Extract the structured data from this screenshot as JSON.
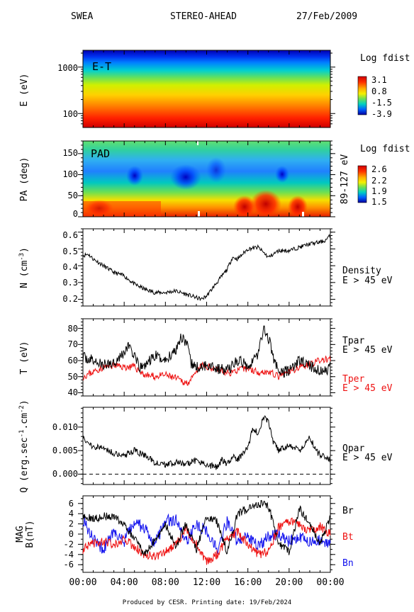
{
  "header": {
    "instrument": "SWEA",
    "spacecraft": "STEREO-AHEAD",
    "date": "27/Feb/2009"
  },
  "footer": "Produced by CESR.  Printing date: 19/Feb/2024",
  "colors": {
    "black": "#000000",
    "red": "#ee1111",
    "blue": "#1111ee"
  },
  "x_ticks": [
    "00:00",
    "04:00",
    "08:00",
    "12:00",
    "16:00",
    "20:00",
    "00:00"
  ],
  "chart_data": [
    {
      "type": "heatmap",
      "panel": "energy-time",
      "inset_label": "E-T",
      "ylabel": "E (eV)",
      "ylim": [
        50,
        2300
      ],
      "yscale": "log",
      "y_ticks": [
        "1000",
        "100"
      ],
      "colorbar": {
        "title": "Log fdist",
        "ticks": [
          "3.1",
          "0.8",
          "-1.5",
          "-3.9"
        ]
      }
    },
    {
      "type": "heatmap",
      "panel": "pitch-angle",
      "inset_label": "PAD",
      "ylabel": "PA (deg)",
      "ylim": [
        0,
        180
      ],
      "y_ticks": [
        "150",
        "100",
        "50",
        "0"
      ],
      "side_label": "89-127 eV",
      "colorbar": {
        "title": "Log fdist",
        "ticks": [
          "2.6",
          "2.2",
          "1.9",
          "1.5"
        ]
      }
    },
    {
      "type": "line",
      "panel": "density",
      "ylabel": "N (cm",
      "ylabel_sup": "-3",
      "ylabel_end": ")",
      "ylim": [
        0.16,
        0.62
      ],
      "y_ticks": [
        "0.6",
        "0.5",
        "0.4",
        "0.3",
        "0.2"
      ],
      "series": [
        {
          "name": "Density",
          "subtitle": "E > 45 eV",
          "color": "#000000",
          "x": [
            0,
            0.5,
            1,
            2,
            3,
            4,
            5,
            6,
            7,
            8,
            9,
            10,
            10.5,
            11,
            11.5,
            12,
            12.5,
            13,
            13.5,
            14,
            14.5,
            15,
            16,
            17,
            18,
            19,
            20,
            21,
            22,
            23,
            23.5,
            24
          ],
          "values": [
            0.46,
            0.47,
            0.44,
            0.4,
            0.36,
            0.34,
            0.29,
            0.26,
            0.24,
            0.24,
            0.25,
            0.23,
            0.22,
            0.21,
            0.2,
            0.22,
            0.26,
            0.3,
            0.34,
            0.38,
            0.45,
            0.44,
            0.5,
            0.51,
            0.45,
            0.49,
            0.49,
            0.51,
            0.53,
            0.54,
            0.55,
            0.58
          ]
        }
      ]
    },
    {
      "type": "line",
      "panel": "temperature",
      "ylabel": "T (eV)",
      "ylim": [
        38,
        86
      ],
      "y_ticks": [
        "80",
        "70",
        "60",
        "50",
        "40"
      ],
      "series": [
        {
          "name": "Tpar",
          "subtitle": "E > 45 eV",
          "color": "#000000",
          "x": [
            0,
            1,
            2,
            3,
            4,
            4.5,
            5,
            5.5,
            6,
            7,
            8,
            9,
            9.5,
            10,
            10.5,
            11,
            11.5,
            12,
            12.5,
            13,
            14,
            15,
            16,
            17,
            17.5,
            18,
            18.5,
            19,
            20,
            21,
            22,
            23,
            24
          ],
          "values": [
            62,
            60,
            57,
            59,
            65,
            70,
            62,
            55,
            57,
            63,
            60,
            67,
            75,
            72,
            58,
            56,
            55,
            58,
            57,
            55,
            54,
            60,
            57,
            64,
            80,
            74,
            62,
            52,
            54,
            60,
            57,
            53,
            55
          ]
        },
        {
          "name": "Tper",
          "subtitle": "E > 45 eV",
          "color": "#ee1111",
          "x": [
            0,
            1,
            2,
            3,
            4,
            5,
            6,
            7,
            8,
            9,
            10,
            10.5,
            11,
            11.5,
            12,
            13,
            14,
            15,
            16,
            17,
            18,
            19,
            20,
            21,
            22,
            23,
            24
          ],
          "values": [
            50,
            53,
            56,
            57,
            56,
            56,
            51,
            50,
            51,
            49,
            46,
            48,
            52,
            57,
            56,
            55,
            52,
            54,
            55,
            53,
            53,
            50,
            53,
            56,
            58,
            60,
            61
          ]
        }
      ]
    },
    {
      "type": "line",
      "panel": "heat-flux",
      "ylabel": "Q (erg.sec",
      "ylabel_sup1": "-1",
      "ylabel_mid": ".cm",
      "ylabel_sup2": "-2",
      "ylabel_end": ")",
      "ylim": [
        -0.0022,
        0.0142
      ],
      "y_ticks": [
        "0.010",
        "0.005",
        "0.000"
      ],
      "reference_line": 0,
      "series": [
        {
          "name": "Qpar",
          "subtitle": "E > 45 eV",
          "color": "#000000",
          "x": [
            0,
            0.5,
            1,
            2,
            3,
            4,
            5,
            6,
            7,
            8,
            9,
            10,
            11,
            12,
            13,
            13.5,
            14,
            14.5,
            15,
            16,
            16.5,
            17,
            17.5,
            18,
            18.5,
            19,
            20,
            21,
            22,
            22.5,
            23,
            24
          ],
          "values": [
            0.008,
            0.0065,
            0.006,
            0.0055,
            0.0045,
            0.004,
            0.005,
            0.004,
            0.0025,
            0.002,
            0.0025,
            0.002,
            0.003,
            0.002,
            0.0015,
            0.003,
            0.002,
            0.004,
            0.003,
            0.0055,
            0.01,
            0.0085,
            0.012,
            0.011,
            0.0065,
            0.005,
            0.006,
            0.005,
            0.008,
            0.0055,
            0.004,
            0.003
          ]
        }
      ]
    },
    {
      "type": "line",
      "panel": "magnetic-field",
      "ylabel": "MAG",
      "ylabel2": "B(nT)",
      "ylim": [
        -7.5,
        7.5
      ],
      "y_ticks": [
        "6",
        "4",
        "2",
        "0",
        "-2",
        "-4",
        "-6"
      ],
      "series": [
        {
          "name": "Br",
          "color": "#000000",
          "x": [
            0,
            1,
            2,
            3,
            4,
            5,
            6,
            7,
            8,
            9,
            10,
            11,
            12,
            13,
            14,
            15,
            16,
            17,
            18,
            19,
            20,
            21,
            22,
            23,
            24
          ],
          "values": [
            3.5,
            3.0,
            3.5,
            3.2,
            2.0,
            -1.0,
            -4.0,
            -1.0,
            2.0,
            -2.5,
            2.0,
            -3.0,
            3.5,
            2.5,
            -3.5,
            4.0,
            5.0,
            6.0,
            5.5,
            -2.0,
            -3.5,
            5.0,
            2.0,
            -2.0,
            3.5
          ]
        },
        {
          "name": "Bt",
          "color": "#ee1111",
          "x": [
            0,
            1,
            2,
            3,
            4,
            5,
            6,
            7,
            8,
            9,
            10,
            11,
            12,
            13,
            14,
            15,
            16,
            17,
            18,
            19,
            20,
            21,
            22,
            23,
            24
          ],
          "values": [
            -3.0,
            -2.0,
            -1.5,
            -2.0,
            -1.0,
            -2.5,
            -4.0,
            -4.5,
            -3.5,
            -2.0,
            1.0,
            -2.0,
            -5.5,
            -4.0,
            -1.0,
            0.5,
            -2.0,
            -4.0,
            -3.5,
            1.5,
            2.5,
            2.0,
            0.5,
            1.5,
            0.0
          ]
        },
        {
          "name": "Bn",
          "color": "#1111ee",
          "x": [
            0,
            1,
            2,
            3,
            4,
            5,
            6,
            7,
            8,
            9,
            10,
            11,
            12,
            13,
            14,
            15,
            16,
            17,
            18,
            19,
            20,
            21,
            22,
            23,
            24
          ],
          "values": [
            3.0,
            -1.0,
            -3.0,
            0.5,
            -1.5,
            2.5,
            1.0,
            -2.0,
            2.5,
            3.0,
            -1.5,
            2.0,
            0.5,
            -3.0,
            2.5,
            -1.5,
            -0.5,
            -2.5,
            -0.5,
            0.0,
            -1.5,
            -0.5,
            -1.5,
            -1.0,
            -2.0
          ]
        }
      ]
    }
  ]
}
